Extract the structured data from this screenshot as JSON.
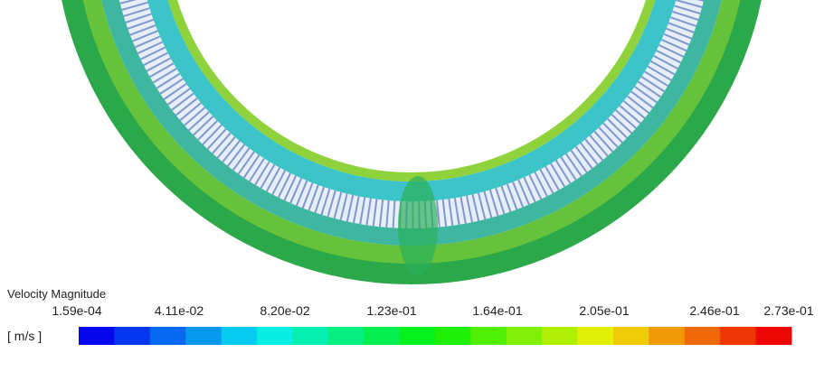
{
  "legend": {
    "title": "Velocity Magnitude",
    "unit": "[ m/s ]",
    "ticks": [
      "1.59e-04",
      "4.11e-02",
      "8.20e-02",
      "1.23e-01",
      "1.64e-01",
      "2.05e-01",
      "2.46e-01",
      "2.73e-01"
    ]
  }
}
